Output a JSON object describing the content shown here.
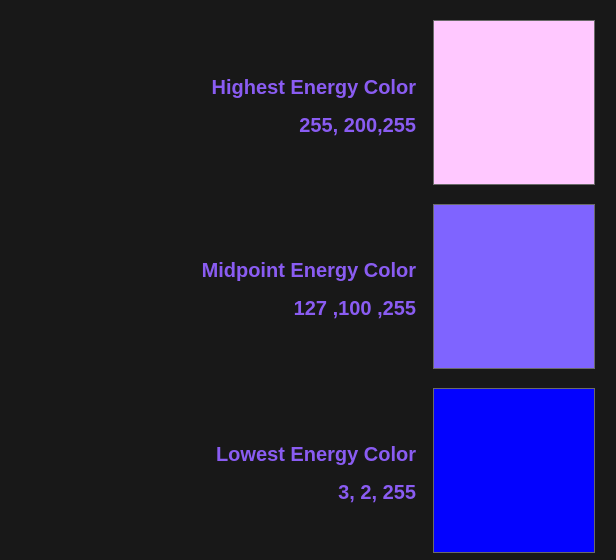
{
  "swatches": [
    {
      "title": "Highest Energy Color",
      "value": "255, 200,255",
      "color": "#ffc8ff"
    },
    {
      "title": "Midpoint Energy Color",
      "value": "127 ,100 ,255",
      "color": "#7f64ff"
    },
    {
      "title": "Lowest Energy Color",
      "value": "3, 2, 255",
      "color": "#0302ff"
    }
  ],
  "colors": {
    "background": "#181818",
    "text": "#8a5cf2"
  }
}
